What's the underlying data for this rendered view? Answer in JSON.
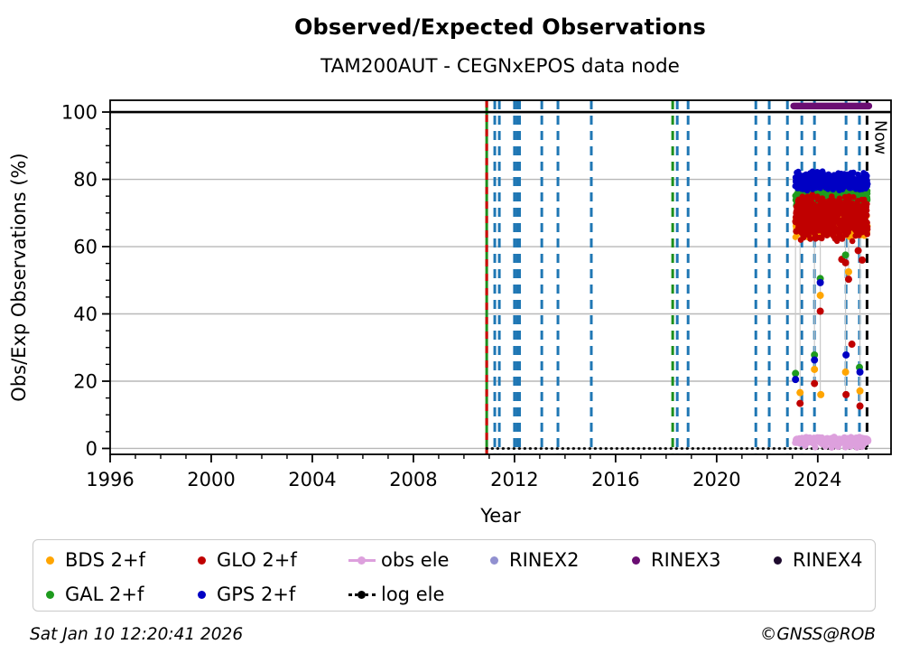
{
  "header": {
    "title": "Observed/Expected Observations",
    "subtitle": "TAM200AUT - CEGNxEPOS data node"
  },
  "footer": {
    "timestamp": "Sat Jan 10 12:20:41 2026",
    "copyright": "©GNSS@ROB"
  },
  "legend": {
    "items": [
      {
        "id": "bds-2f",
        "label": "BDS 2+f",
        "marker": "dot",
        "color": "#FFA500",
        "row": 0,
        "col": 0
      },
      {
        "id": "gal-2f",
        "label": "GAL 2+f",
        "marker": "dot",
        "color": "#1E9B1E",
        "row": 1,
        "col": 0
      },
      {
        "id": "glo-2f",
        "label": "GLO 2+f",
        "marker": "dot",
        "color": "#C00000",
        "row": 0,
        "col": 1
      },
      {
        "id": "gps-2f",
        "label": "GPS 2+f",
        "marker": "dot",
        "color": "#0000C4",
        "row": 1,
        "col": 1
      },
      {
        "id": "obs-ele",
        "label": "obs ele",
        "marker": "line-dot",
        "color": "#DDA0DD",
        "row": 0,
        "col": 2
      },
      {
        "id": "log-ele",
        "label": "log ele",
        "marker": "dotted-line-dot",
        "color": "#000000",
        "row": 1,
        "col": 2
      },
      {
        "id": "rinex2",
        "label": "RINEX2",
        "marker": "dot",
        "color": "#9190D0",
        "row": 0,
        "col": 3
      },
      {
        "id": "rinex3",
        "label": "RINEX3",
        "marker": "dot",
        "color": "#6A0D72",
        "row": 0,
        "col": 4
      },
      {
        "id": "rinex4",
        "label": "RINEX4",
        "marker": "dot",
        "color": "#1E0B2E",
        "row": 0,
        "col": 5
      }
    ],
    "col_lefts": [
      14,
      182,
      349,
      506,
      663,
      820
    ],
    "row_tops": [
      6,
      44
    ]
  },
  "chart_data": {
    "type": "scatter",
    "title": "Observed/Expected Observations",
    "subtitle": "TAM200AUT - CEGNxEPOS data node",
    "xlabel": "Year",
    "ylabel": "Obs/Exp Observations (%)",
    "xlim": [
      1996,
      2026.9
    ],
    "ylim": [
      -1.75,
      103.5
    ],
    "x_major_ticks": [
      1996,
      2000,
      2004,
      2008,
      2012,
      2016,
      2020,
      2024
    ],
    "x_minor_step": 1,
    "y_major_ticks": [
      0,
      20,
      40,
      60,
      80,
      100
    ],
    "y_minor_step": 5,
    "grid": "horizontal-majors",
    "grid_color": "#b8b8b8",
    "now_label": "Now",
    "now_line": {
      "x": 2025.95,
      "color": "#000000",
      "dash": "10 7",
      "w": 3
    },
    "ref_line_100": {
      "y": 100,
      "color": "#000000",
      "w": 2.6
    },
    "log_ele_line": {
      "y": 0,
      "x_start": 2010.9,
      "x_end": 2026.05,
      "color": "#000000",
      "style": "dotted"
    },
    "rinex3_line": {
      "y": 101.8,
      "x_start": 2023.05,
      "x_end": 2026.02,
      "color": "#6A0D72",
      "w": 7.5
    },
    "event_lines": [
      {
        "x": 2010.9,
        "color": "#1d8f1d",
        "dash": "solid",
        "w": 3
      },
      {
        "x": 2010.9,
        "color": "#cc0000",
        "dash": "8 8",
        "w": 3
      },
      {
        "x": 2011.22,
        "color": "#1f77b4",
        "dash": "10 7",
        "w": 3
      },
      {
        "x": 2011.4,
        "color": "#1f77b4",
        "dash": "10 7",
        "w": 3
      },
      {
        "x": 2012.0,
        "color": "#1f77b4",
        "dash": "10 7",
        "w": 3
      },
      {
        "x": 2012.1,
        "color": "#1f77b4",
        "dash": "10 7",
        "w": 3
      },
      {
        "x": 2012.2,
        "color": "#1f77b4",
        "dash": "10 7",
        "w": 3
      },
      {
        "x": 2013.08,
        "color": "#1f77b4",
        "dash": "10 7",
        "w": 3
      },
      {
        "x": 2013.72,
        "color": "#1f77b4",
        "dash": "10 7",
        "w": 3
      },
      {
        "x": 2015.04,
        "color": "#1f77b4",
        "dash": "10 7",
        "w": 3
      },
      {
        "x": 2018.26,
        "color": "#1d8f1d",
        "dash": "10 7",
        "w": 3
      },
      {
        "x": 2018.44,
        "color": "#1f77b4",
        "dash": "10 7",
        "w": 3
      },
      {
        "x": 2018.87,
        "color": "#1f77b4",
        "dash": "10 7",
        "w": 3
      },
      {
        "x": 2021.55,
        "color": "#1f77b4",
        "dash": "10 7",
        "w": 3
      },
      {
        "x": 2022.08,
        "color": "#1f77b4",
        "dash": "10 7",
        "w": 3
      },
      {
        "x": 2022.8,
        "color": "#1f77b4",
        "dash": "10 7",
        "w": 3
      },
      {
        "x": 2023.37,
        "color": "#1f77b4",
        "dash": "10 7",
        "w": 3
      },
      {
        "x": 2023.87,
        "color": "#1f77b4",
        "dash": "10 7",
        "w": 3
      },
      {
        "x": 2025.12,
        "color": "#1f77b4",
        "dash": "10 7",
        "w": 3
      },
      {
        "x": 2025.65,
        "color": "#1f77b4",
        "dash": "10 7",
        "w": 3
      }
    ],
    "bands": [
      {
        "name": "BDS 2+f",
        "color": "#FFA500",
        "x_start": 2023.1,
        "x_end": 2025.98,
        "y_min": 62.5,
        "y_max": 70.5,
        "n": 300,
        "r": 3.3,
        "seed": 11
      },
      {
        "name": "GAL 2+f",
        "color": "#1E9B1E",
        "x_start": 2023.1,
        "x_end": 2025.98,
        "y_min": 71.5,
        "y_max": 78.5,
        "n": 360,
        "r": 3.3,
        "seed": 22
      },
      {
        "name": "GLO 2+f",
        "color": "#C00000",
        "x_start": 2023.1,
        "x_end": 2025.98,
        "y_min": 61.5,
        "y_max": 75.5,
        "n": 540,
        "r": 3.3,
        "seed": 33
      },
      {
        "name": "GPS 2+f",
        "color": "#0000C4",
        "x_start": 2023.1,
        "x_end": 2025.98,
        "y_min": 76.5,
        "y_max": 82.5,
        "n": 440,
        "r": 3.3,
        "seed": 44
      },
      {
        "name": "obs ele",
        "color": "#DDA0DD",
        "x_start": 2023.05,
        "x_end": 2026.0,
        "y_min": 1.3,
        "y_max": 3.5,
        "n": 280,
        "r": 3.6,
        "seed": 55
      }
    ],
    "obs_ele_low_dots": [
      {
        "x": 2023.5,
        "y": 0.8
      },
      {
        "x": 2023.9,
        "y": 0.4
      },
      {
        "x": 2024.3,
        "y": 0.6
      },
      {
        "x": 2024.55,
        "y": 0.3
      },
      {
        "x": 2024.8,
        "y": 0.5
      },
      {
        "x": 2025.1,
        "y": 0.4
      },
      {
        "x": 2025.3,
        "y": 0.6
      },
      {
        "x": 2025.55,
        "y": 0.3
      },
      {
        "x": 2025.75,
        "y": 0.5
      }
    ],
    "outlier_stems": [
      {
        "x": 2023.12,
        "y_top": 63,
        "y_bot": 20.5
      },
      {
        "x": 2023.3,
        "y_top": 63,
        "y_bot": 13.4
      },
      {
        "x": 2023.87,
        "y_top": 63,
        "y_bot": 19.3
      },
      {
        "x": 2024.1,
        "y_top": 63,
        "y_bot": 16.0
      },
      {
        "x": 2025.1,
        "y_top": 63,
        "y_bot": 16.0
      },
      {
        "x": 2025.22,
        "y_top": 63,
        "y_bot": 50.3
      },
      {
        "x": 2025.67,
        "y_top": 63,
        "y_bot": 12.6
      }
    ],
    "outliers": [
      {
        "series": "GAL 2+f",
        "color": "#1E9B1E",
        "x": 2023.12,
        "y": 22.3
      },
      {
        "series": "GPS 2+f",
        "color": "#0000C4",
        "x": 2023.12,
        "y": 20.5
      },
      {
        "series": "BDS 2+f",
        "color": "#FFA500",
        "x": 2023.3,
        "y": 16.6
      },
      {
        "series": "GLO 2+f",
        "color": "#C00000",
        "x": 2023.3,
        "y": 13.4
      },
      {
        "series": "GAL 2+f",
        "color": "#1E9B1E",
        "x": 2023.87,
        "y": 27.8
      },
      {
        "series": "GPS 2+f",
        "color": "#0000C4",
        "x": 2023.87,
        "y": 26.3
      },
      {
        "series": "BDS 2+f",
        "color": "#FFA500",
        "x": 2023.87,
        "y": 23.5
      },
      {
        "series": "GLO 2+f",
        "color": "#C00000",
        "x": 2023.87,
        "y": 19.3
      },
      {
        "series": "GAL 2+f",
        "color": "#1E9B1E",
        "x": 2024.1,
        "y": 50.5
      },
      {
        "series": "GPS 2+f",
        "color": "#0000C4",
        "x": 2024.1,
        "y": 49.3
      },
      {
        "series": "BDS 2+f",
        "color": "#FFA500",
        "x": 2024.1,
        "y": 45.5
      },
      {
        "series": "GLO 2+f",
        "color": "#C00000",
        "x": 2024.1,
        "y": 40.8
      },
      {
        "series": "BDS 2+f",
        "color": "#FFA500",
        "x": 2024.12,
        "y": 16.0
      },
      {
        "series": "GLO 2+f",
        "color": "#C00000",
        "x": 2024.95,
        "y": 56.2
      },
      {
        "series": "GAL 2+f",
        "color": "#1E9B1E",
        "x": 2025.1,
        "y": 57.5
      },
      {
        "series": "GLO 2+f",
        "color": "#C00000",
        "x": 2025.1,
        "y": 55.2
      },
      {
        "series": "BDS 2+f",
        "color": "#FFA500",
        "x": 2025.22,
        "y": 52.5
      },
      {
        "series": "GLO 2+f",
        "color": "#C00000",
        "x": 2025.22,
        "y": 50.3
      },
      {
        "series": "GPS 2+f",
        "color": "#0000C4",
        "x": 2025.12,
        "y": 27.8
      },
      {
        "series": "BDS 2+f",
        "color": "#FFA500",
        "x": 2025.1,
        "y": 22.7
      },
      {
        "series": "GLO 2+f",
        "color": "#C00000",
        "x": 2025.12,
        "y": 16.0
      },
      {
        "series": "GLO 2+f",
        "color": "#C00000",
        "x": 2025.35,
        "y": 31.0
      },
      {
        "series": "GLO 2+f",
        "color": "#C00000",
        "x": 2025.6,
        "y": 58.8
      },
      {
        "series": "GLO 2+f",
        "color": "#C00000",
        "x": 2025.76,
        "y": 56.0
      },
      {
        "series": "GAL 2+f",
        "color": "#1E9B1E",
        "x": 2025.65,
        "y": 24.1
      },
      {
        "series": "GPS 2+f",
        "color": "#0000C4",
        "x": 2025.67,
        "y": 22.7
      },
      {
        "series": "BDS 2+f",
        "color": "#FFA500",
        "x": 2025.67,
        "y": 17.1
      },
      {
        "series": "GLO 2+f",
        "color": "#C00000",
        "x": 2025.67,
        "y": 12.6
      }
    ]
  }
}
